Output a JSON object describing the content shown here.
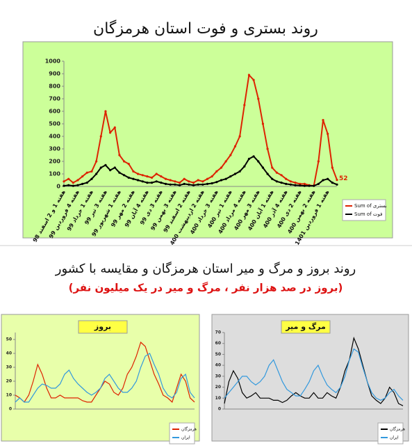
{
  "chart_data": [
    {
      "type": "line",
      "title": "روند بستری و فوت استان هرمزگان",
      "categories": [
        "هفته 1 و 2 اسفند 98",
        null,
        null,
        "هفته 4 فروردین 99",
        null,
        null,
        "هفته 1 خرداد 99",
        null,
        null,
        "هفته 3 تیر 99",
        null,
        null,
        "هفته 1 شهریور 99",
        null,
        null,
        "هفته 2 مهر 99",
        null,
        null,
        "هفته 4 آبان 99",
        null,
        null,
        "هفته 3 دی 99",
        null,
        null,
        "هفته 3 بهمن 99",
        null,
        null,
        "هفته 2 اسفند 99",
        null,
        null,
        "هفته 2 اردیبهشت 400",
        null,
        null,
        "هفته 3 خرداد 400",
        null,
        null,
        "هفته 1 تیر 400",
        null,
        null,
        "هفته 4 مرداد 400",
        null,
        null,
        "هفته 3 مهر 400",
        null,
        null,
        "هفته 1 آبان 400",
        null,
        null,
        "هفته 4 آذر 400",
        null,
        null,
        "هفته 2 دی 400",
        null,
        null,
        "هفته 2 بهمن 400",
        null,
        null,
        "هفته 1 فروردین 1401",
        null,
        null
      ],
      "series": [
        {
          "name": "Sum of بستری",
          "color": "#dd2200",
          "values": [
            40,
            60,
            30,
            50,
            80,
            110,
            120,
            200,
            400,
            600,
            430,
            470,
            250,
            200,
            180,
            120,
            100,
            90,
            80,
            70,
            100,
            80,
            60,
            50,
            40,
            30,
            60,
            40,
            30,
            50,
            40,
            60,
            80,
            120,
            150,
            200,
            250,
            320,
            400,
            650,
            890,
            850,
            700,
            500,
            300,
            150,
            110,
            90,
            60,
            40,
            30,
            20,
            20,
            10,
            5,
            200,
            530,
            420,
            150,
            52
          ]
        },
        {
          "name": "Sum of فوت",
          "color": "#000000",
          "values": [
            5,
            10,
            5,
            10,
            20,
            30,
            60,
            100,
            150,
            170,
            130,
            150,
            110,
            90,
            70,
            60,
            50,
            40,
            30,
            30,
            40,
            30,
            20,
            15,
            15,
            10,
            20,
            15,
            10,
            15,
            15,
            20,
            25,
            35,
            50,
            60,
            80,
            100,
            120,
            160,
            220,
            240,
            200,
            150,
            100,
            60,
            40,
            30,
            20,
            15,
            10,
            8,
            5,
            5,
            5,
            20,
            50,
            60,
            30,
            15
          ]
        }
      ],
      "ylim": [
        0,
        1000
      ],
      "yticks": [
        0,
        100,
        200,
        300,
        400,
        500,
        600,
        700,
        800,
        900,
        1000
      ]
    },
    {
      "type": "line",
      "title": "بروز",
      "series": [
        {
          "name": "هرمزگان",
          "color": "#dd2200",
          "values": [
            10,
            8,
            5,
            10,
            20,
            32,
            25,
            15,
            8,
            8,
            10,
            8,
            8,
            8,
            8,
            6,
            5,
            5,
            10,
            15,
            20,
            18,
            12,
            10,
            15,
            25,
            30,
            38,
            48,
            45,
            35,
            25,
            18,
            10,
            8,
            5,
            15,
            25,
            20,
            8,
            5
          ]
        },
        {
          "name": "ایران",
          "color": "#3399dd",
          "values": [
            5,
            8,
            5,
            5,
            10,
            15,
            18,
            17,
            15,
            15,
            18,
            25,
            28,
            22,
            18,
            15,
            12,
            10,
            12,
            15,
            22,
            25,
            20,
            15,
            12,
            12,
            15,
            20,
            30,
            38,
            40,
            32,
            25,
            15,
            10,
            8,
            12,
            22,
            25,
            12,
            8
          ]
        }
      ],
      "ylim": [
        0,
        55
      ],
      "yticks": [
        0,
        10,
        20,
        30,
        40,
        50
      ]
    },
    {
      "type": "line",
      "title": "مرگ و میر",
      "series": [
        {
          "name": "هرمزگان",
          "color": "#000000",
          "values": [
            5,
            25,
            35,
            28,
            15,
            10,
            12,
            15,
            10,
            10,
            10,
            8,
            8,
            6,
            8,
            12,
            15,
            12,
            10,
            10,
            15,
            10,
            10,
            15,
            12,
            10,
            20,
            35,
            45,
            65,
            55,
            40,
            25,
            12,
            8,
            5,
            10,
            20,
            15,
            5,
            3
          ]
        },
        {
          "name": "ایران",
          "color": "#3399dd",
          "values": [
            10,
            15,
            20,
            25,
            30,
            30,
            25,
            22,
            25,
            30,
            40,
            45,
            35,
            25,
            18,
            15,
            12,
            12,
            18,
            25,
            35,
            40,
            30,
            22,
            18,
            15,
            20,
            30,
            45,
            55,
            52,
            38,
            25,
            15,
            10,
            8,
            10,
            15,
            18,
            12,
            8
          ]
        }
      ],
      "ylim": [
        0,
        70
      ],
      "yticks": [
        0,
        10,
        20,
        30,
        40,
        50,
        60,
        70
      ]
    }
  ],
  "section": {
    "title": "روند بروز و مرگ و میر استان هرمزگان و مقایسه با کشور",
    "subtitle": "(بروز در صد هزار نفر ، مرگ و میر در یک میلیون نفر)"
  }
}
